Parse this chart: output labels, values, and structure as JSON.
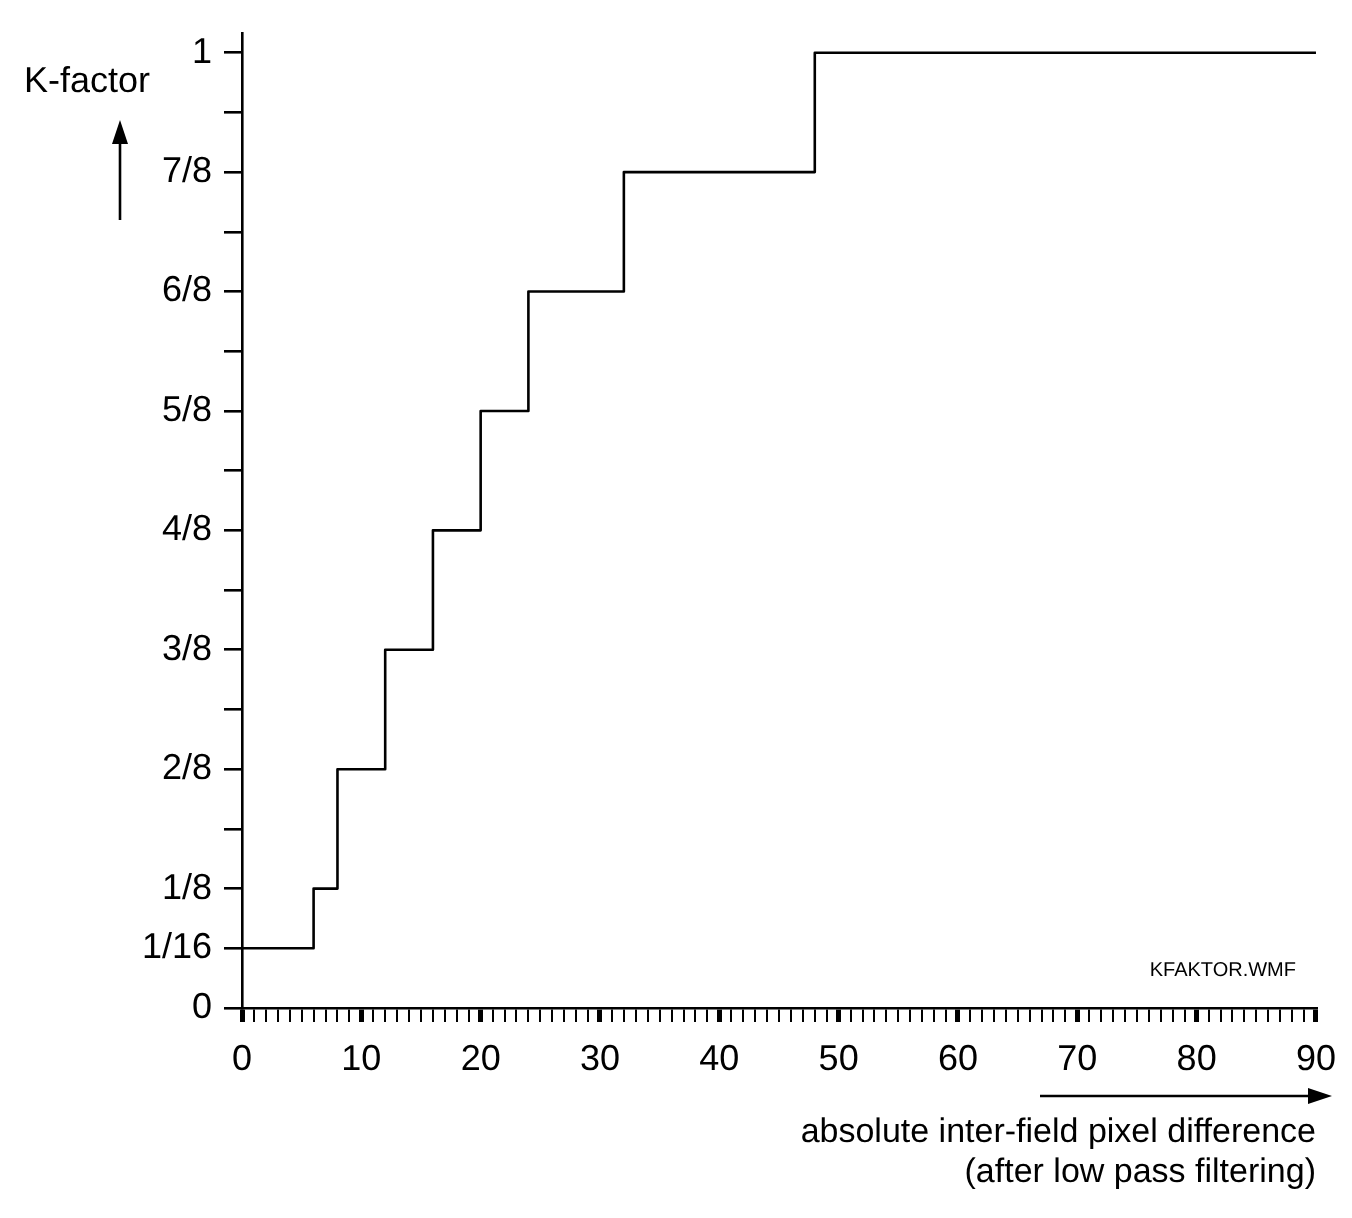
{
  "chart_data": {
    "type": "step",
    "xlabel": "absolute inter-field pixel difference\n(after low pass filtering)",
    "ylabel": "K-factor",
    "annotations": [
      "KFAKTOR.WMF"
    ],
    "x": [
      0,
      6,
      8,
      12,
      16,
      20,
      24,
      32,
      48,
      90
    ],
    "series": [
      {
        "color": "#000000",
        "values": [
          0.0625,
          0.125,
          0.25,
          0.375,
          0.5,
          0.625,
          0.75,
          0.875,
          1,
          1
        ]
      }
    ],
    "xlim": [
      0,
      90
    ],
    "ylim": [
      0,
      1.02
    ],
    "xticks": [
      0,
      {
        "value": 1,
        "label": null
      },
      {
        "value": 2,
        "label": null
      },
      {
        "value": 3,
        "label": null
      },
      {
        "value": 4,
        "label": null
      },
      {
        "value": 5,
        "label": null
      },
      {
        "value": 6,
        "label": null
      },
      {
        "value": 7,
        "label": null
      },
      {
        "value": 8,
        "label": null
      },
      {
        "value": 9,
        "label": null
      },
      10,
      {
        "value": 11,
        "label": null
      },
      {
        "value": 12,
        "label": null
      },
      {
        "value": 13,
        "label": null
      },
      {
        "value": 14,
        "label": null
      },
      {
        "value": 15,
        "label": null
      },
      {
        "value": 16,
        "label": null
      },
      {
        "value": 17,
        "label": null
      },
      {
        "value": 18,
        "label": null
      },
      {
        "value": 19,
        "label": null
      },
      20,
      {
        "value": 21,
        "label": null
      },
      {
        "value": 22,
        "label": null
      },
      {
        "value": 23,
        "label": null
      },
      {
        "value": 24,
        "label": null
      },
      {
        "value": 25,
        "label": null
      },
      {
        "value": 26,
        "label": null
      },
      {
        "value": 27,
        "label": null
      },
      {
        "value": 28,
        "label": null
      },
      {
        "value": 29,
        "label": null
      },
      30,
      {
        "value": 31,
        "label": null
      },
      {
        "value": 32,
        "label": null
      },
      {
        "value": 33,
        "label": null
      },
      {
        "value": 34,
        "label": null
      },
      {
        "value": 35,
        "label": null
      },
      {
        "value": 36,
        "label": null
      },
      {
        "value": 37,
        "label": null
      },
      {
        "value": 38,
        "label": null
      },
      {
        "value": 39,
        "label": null
      },
      40,
      {
        "value": 41,
        "label": null
      },
      {
        "value": 42,
        "label": null
      },
      {
        "value": 43,
        "label": null
      },
      {
        "value": 44,
        "label": null
      },
      {
        "value": 45,
        "label": null
      },
      {
        "value": 46,
        "label": null
      },
      {
        "value": 47,
        "label": null
      },
      {
        "value": 48,
        "label": null
      },
      {
        "value": 49,
        "label": null
      },
      50,
      {
        "value": 51,
        "label": null
      },
      {
        "value": 52,
        "label": null
      },
      {
        "value": 53,
        "label": null
      },
      {
        "value": 54,
        "label": null
      },
      {
        "value": 55,
        "label": null
      },
      {
        "value": 56,
        "label": null
      },
      {
        "value": 57,
        "label": null
      },
      {
        "value": 58,
        "label": null
      },
      {
        "value": 59,
        "label": null
      },
      60,
      {
        "value": 61,
        "label": null
      },
      {
        "value": 62,
        "label": null
      },
      {
        "value": 63,
        "label": null
      },
      {
        "value": 64,
        "label": null
      },
      {
        "value": 65,
        "label": null
      },
      {
        "value": 66,
        "label": null
      },
      {
        "value": 67,
        "label": null
      },
      {
        "value": 68,
        "label": null
      },
      {
        "value": 69,
        "label": null
      },
      70,
      {
        "value": 71,
        "label": null
      },
      {
        "value": 72,
        "label": null
      },
      {
        "value": 73,
        "label": null
      },
      {
        "value": 74,
        "label": null
      },
      {
        "value": 75,
        "label": null
      },
      {
        "value": 76,
        "label": null
      },
      {
        "value": 77,
        "label": null
      },
      {
        "value": 78,
        "label": null
      },
      {
        "value": 79,
        "label": null
      },
      80,
      {
        "value": 81,
        "label": null
      },
      {
        "value": 82,
        "label": null
      },
      {
        "value": 83,
        "label": null
      },
      {
        "value": 84,
        "label": null
      },
      {
        "value": 85,
        "label": null
      },
      {
        "value": 86,
        "label": null
      },
      {
        "value": 87,
        "label": null
      },
      {
        "value": 88,
        "label": null
      },
      {
        "value": 89,
        "label": null
      },
      90
    ],
    "yticks": [
      0,
      {
        "value": 0.0625,
        "label": "1/16"
      },
      {
        "value": 0.125,
        "label": "1/8"
      },
      {
        "value": 0.1875,
        "label": null
      },
      {
        "value": 0.25,
        "label": "2/8"
      },
      {
        "value": 0.3125,
        "label": null
      },
      {
        "value": 0.375,
        "label": "3/8"
      },
      {
        "value": 0.4375,
        "label": null
      },
      {
        "value": 0.5,
        "label": "4/8"
      },
      {
        "value": 0.5625,
        "label": null
      },
      {
        "value": 0.625,
        "label": "5/8"
      },
      {
        "value": 0.6875,
        "label": null
      },
      {
        "value": 0.75,
        "label": "6/8"
      },
      {
        "value": 0.8125,
        "label": null
      },
      {
        "value": 0.875,
        "label": "7/8"
      },
      {
        "value": 0.9375,
        "label": null
      },
      1
    ],
    "grid": false,
    "legend": false,
    "marker": "none",
    "line_style": "solid"
  }
}
